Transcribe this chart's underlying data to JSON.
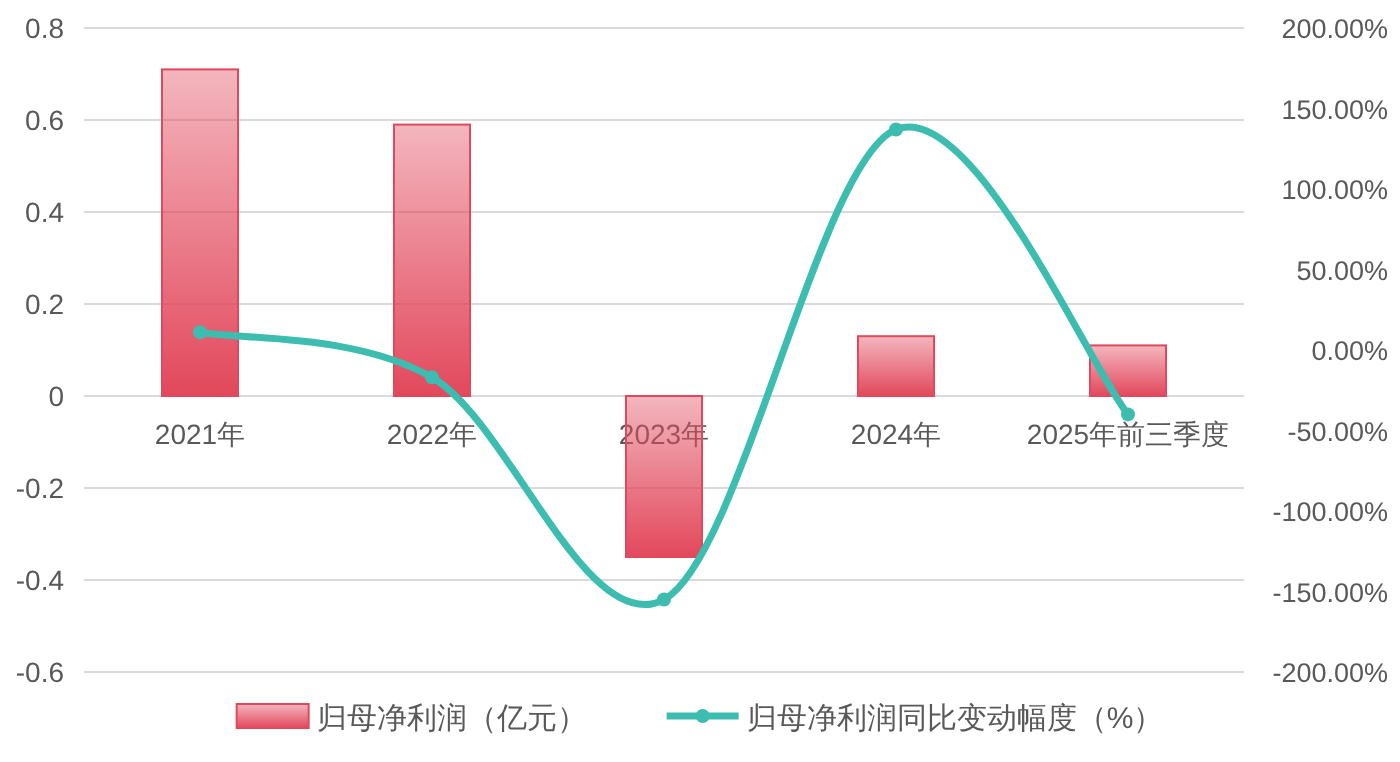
{
  "chart_data": {
    "type": "bar",
    "categories": [
      "2021年",
      "2022年",
      "2023年",
      "2024年",
      "2025年前三季度"
    ],
    "series": [
      {
        "name": "归母净利润（亿元）",
        "color": "#e2485c",
        "values": [
          0.71,
          0.59,
          -0.35,
          0.13,
          0.11
        ]
      },
      {
        "name": "归母净利润同比变动幅度（%）",
        "type": "line",
        "axis": "y2",
        "color": "#3dbdb0",
        "marker": "circle",
        "values": [
          11,
          -17,
          -155,
          137,
          -40
        ]
      }
    ],
    "ylim": [
      -0.6,
      0.8
    ],
    "yticks": [
      -0.6,
      -0.4,
      -0.2,
      0,
      0.2,
      0.4,
      0.6,
      0.8
    ],
    "y2lim": [
      -200,
      200
    ],
    "y2ticks": [
      {
        "value": -200,
        "label": "-200.00%"
      },
      {
        "value": -150,
        "label": "-150.00%"
      },
      {
        "value": -100,
        "label": "-100.00%"
      },
      {
        "value": -50,
        "label": "-50.00%"
      },
      {
        "value": 0,
        "label": "0.00%"
      },
      {
        "value": 50,
        "label": "50.00%"
      },
      {
        "value": 100,
        "label": "100.00%"
      },
      {
        "value": 150,
        "label": "150.00%"
      },
      {
        "value": 200,
        "label": "200.00%"
      }
    ],
    "grid": "y",
    "legend": "bottom"
  }
}
